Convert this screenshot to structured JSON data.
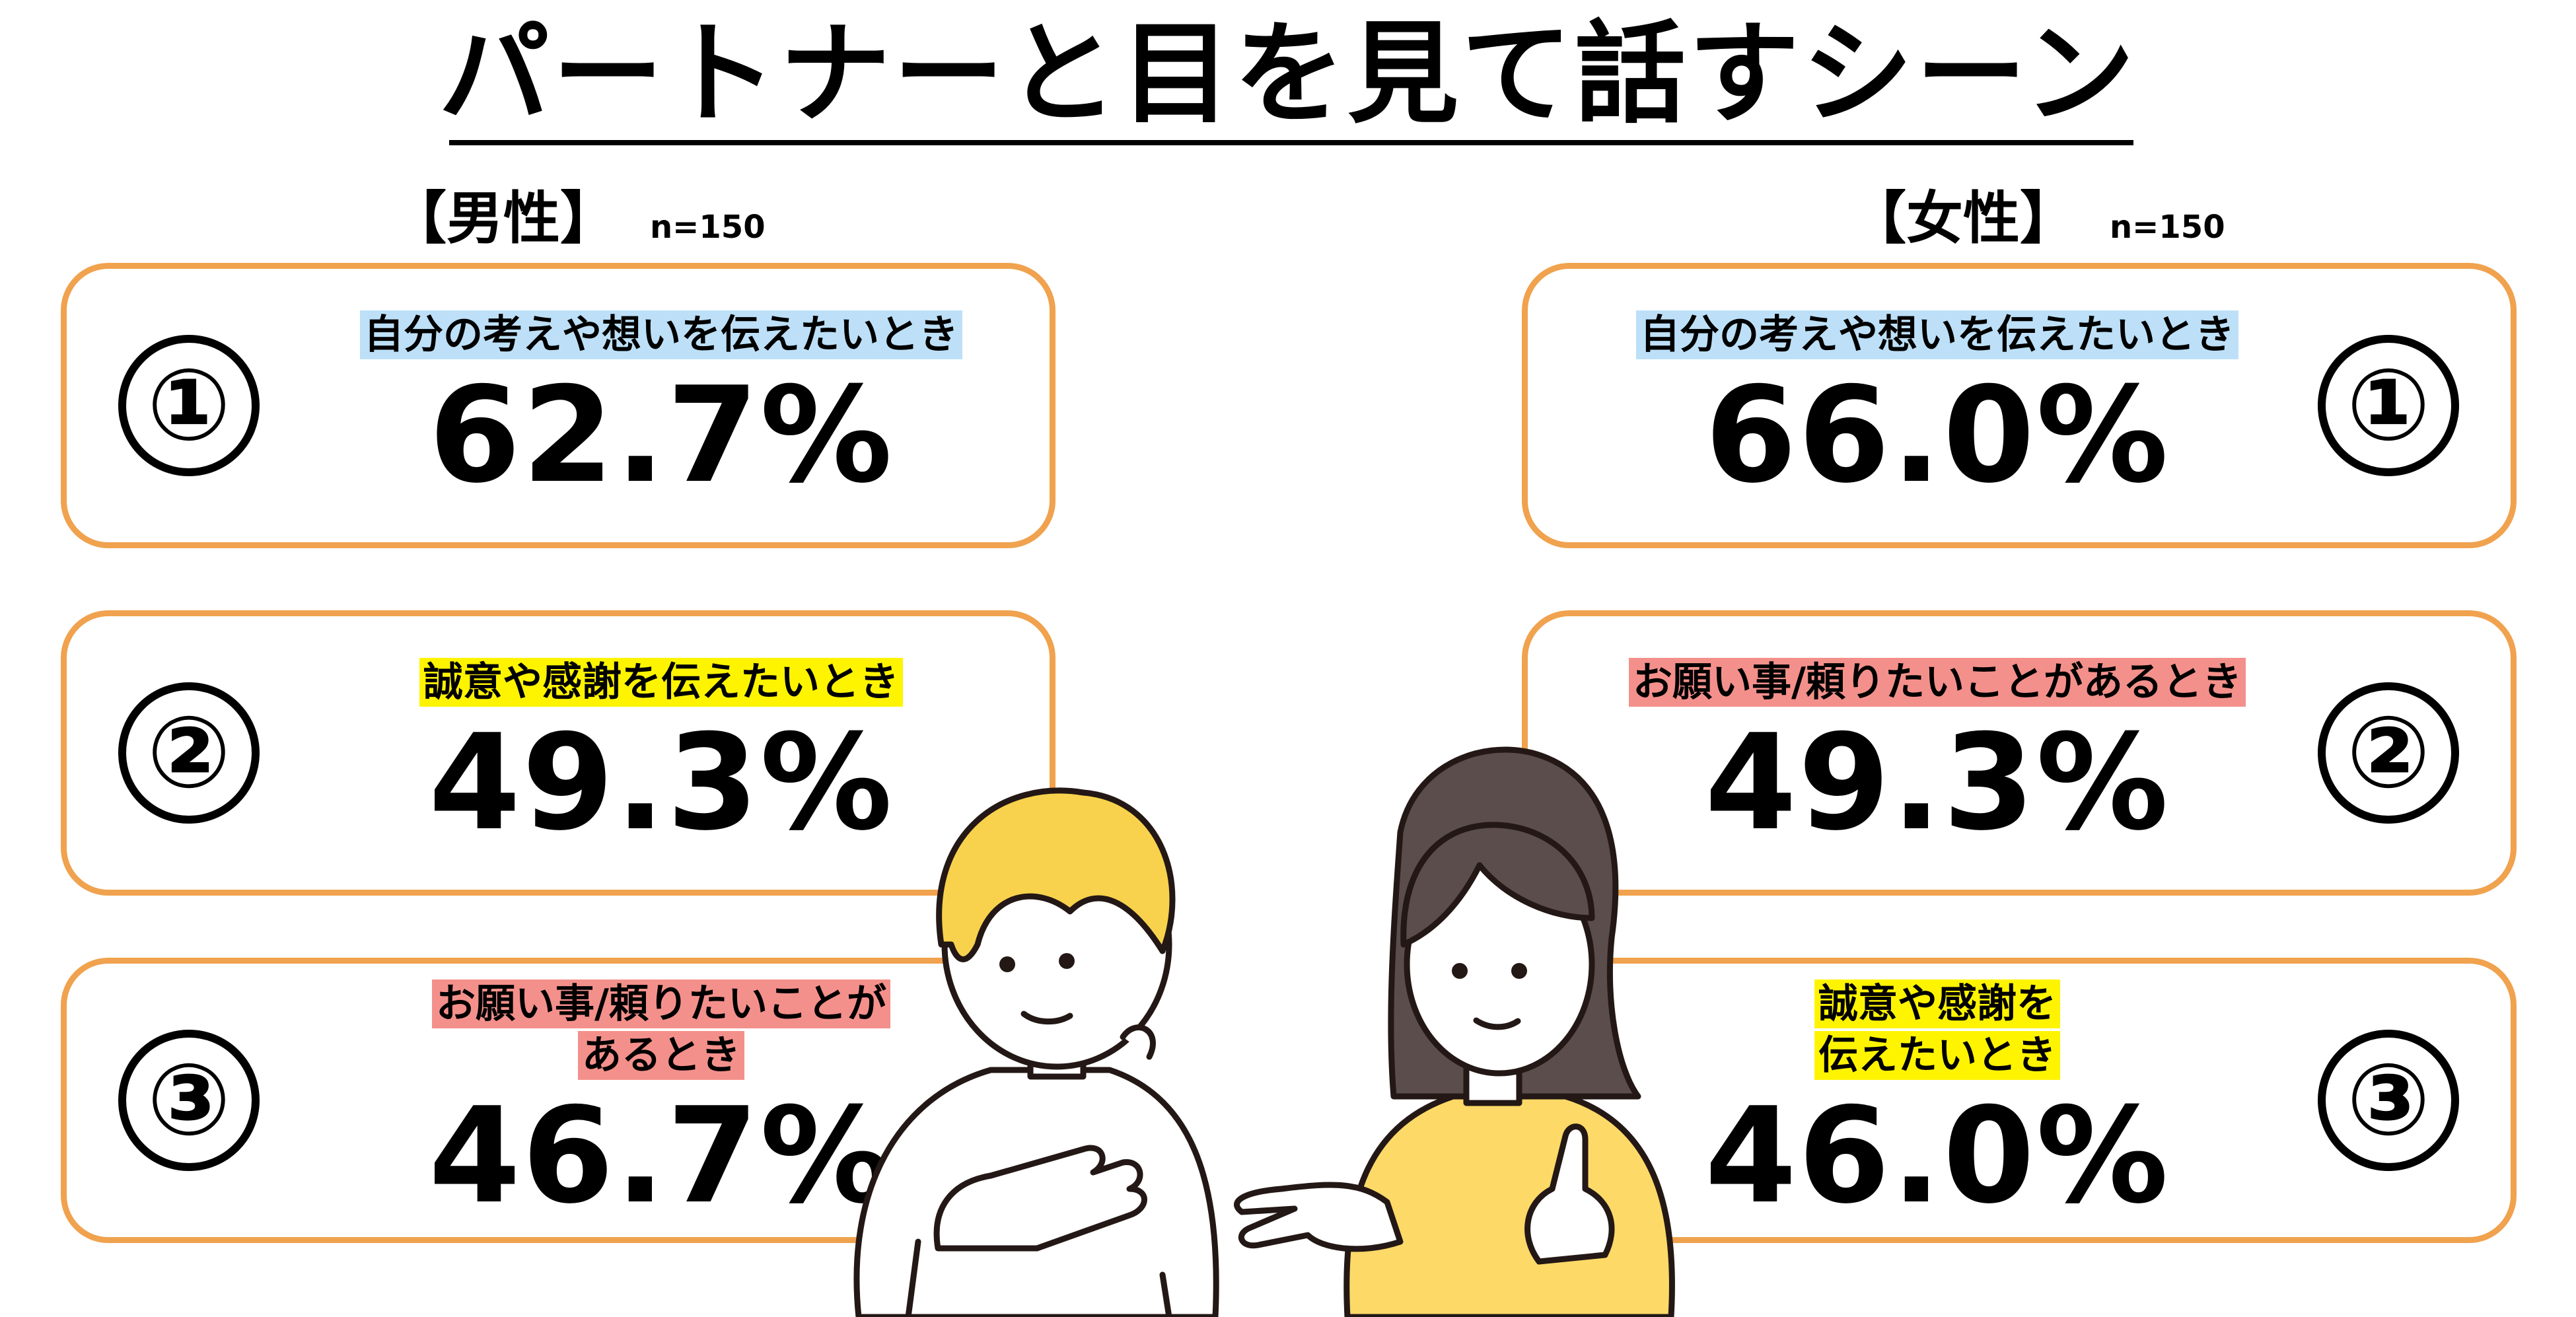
{
  "title": "パートナーと目を見て話すシーン",
  "male": {
    "label": "【男性】",
    "sample": "n=150",
    "items": [
      {
        "rank": "①",
        "reason": "自分の考えや想いを伝えたいとき",
        "value": "62.7%",
        "highlight": "#BDE0F8"
      },
      {
        "rank": "②",
        "reason": "誠意や感謝を伝えたいとき",
        "value": "49.3%",
        "highlight": "#FFF400"
      },
      {
        "rank": "③",
        "reason_line1": "お願い事/頼りたいことが",
        "reason_line2": "あるとき",
        "value": "46.7%",
        "highlight": "#F4908B"
      }
    ]
  },
  "female": {
    "label": "【女性】",
    "sample": "n=150",
    "items": [
      {
        "rank": "①",
        "reason": "自分の考えや想いを伝えたいとき",
        "value": "66.0%",
        "highlight": "#BDE0F8"
      },
      {
        "rank": "②",
        "reason": "お願い事/頼りたいことがあるとき",
        "value": "49.3%",
        "highlight": "#F4908B"
      },
      {
        "rank": "③",
        "reason_line1": "誠意や感謝を",
        "reason_line2": "伝えたいとき",
        "value": "46.0%",
        "highlight": "#FFF400"
      }
    ]
  },
  "colors": {
    "card_border": "#F0A24E",
    "man_hair": "#F8D24C",
    "woman_hair": "#5A4D4C",
    "woman_shirt": "#FDD968"
  },
  "illustration": {
    "man_icon": "man-touching-chest-icon",
    "woman_icon": "woman-gesturing-icon"
  }
}
